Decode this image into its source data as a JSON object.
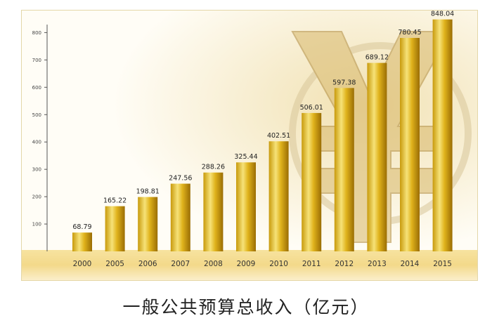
{
  "caption": "一般公共预算总收入（亿元）",
  "chart_data": {
    "type": "bar",
    "title": "",
    "xlabel": "",
    "ylabel": "",
    "categories": [
      "2000",
      "2005",
      "2006",
      "2007",
      "2008",
      "2009",
      "2010",
      "2011",
      "2012",
      "2013",
      "2014",
      "2015"
    ],
    "values": [
      68.79,
      165.22,
      198.81,
      247.56,
      288.26,
      325.44,
      402.51,
      506.01,
      597.38,
      689.12,
      780.45,
      848.04
    ],
    "value_labels": [
      "68.79",
      "165.22",
      "198.81",
      "247.56",
      "288.26",
      "325.44",
      "402.51",
      "506.01",
      "597.38",
      "689.12",
      "780.45",
      "848.04"
    ],
    "y_ticks": [
      "100",
      "200",
      "300",
      "400",
      "500",
      "600",
      "700",
      "800"
    ],
    "ylim": [
      0,
      900
    ],
    "grid": false,
    "legend": "none",
    "bar_colors": [
      "#f6e278",
      "#d7a712",
      "#9a6d04"
    ],
    "floor_color": "#f3d98a",
    "background_icon": "yuan-sign-icon"
  }
}
